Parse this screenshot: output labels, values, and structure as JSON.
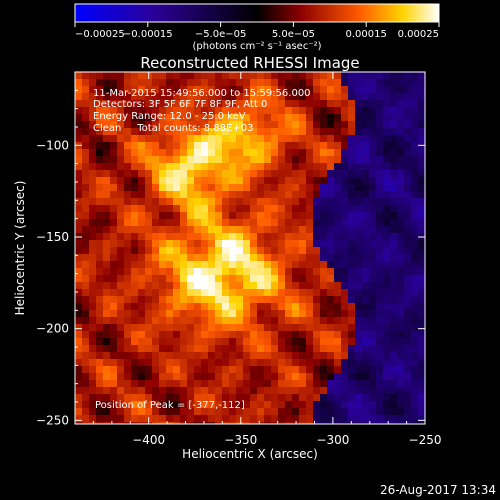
{
  "chart_data": {
    "type": "heatmap",
    "title": "Reconstructed RHESSI Image",
    "xlabel": "Heliocentric X (arcsec)",
    "ylabel": "Heliocentric Y (arcsec)",
    "xlim": [
      -440,
      -250
    ],
    "ylim": [
      -252,
      -60
    ],
    "x_ticks": [
      -400,
      -350,
      -300,
      -250
    ],
    "x_tick_labels": [
      "−400",
      "−350",
      "−300",
      "−250"
    ],
    "y_ticks": [
      -100,
      -150,
      -200,
      -250
    ],
    "y_tick_labels": [
      "−100",
      "−150",
      "−200",
      "−250"
    ],
    "colorbar": {
      "range": [
        -0.00025,
        0.00025
      ],
      "ticks": [
        -0.00025,
        -0.00015,
        -5e-05,
        5e-05,
        0.00015,
        0.00025
      ],
      "tick_labels": [
        "−0.00025",
        "−0.00015",
        "−5.0e−05",
        "5.0e−05",
        "0.00015",
        "0.00025"
      ],
      "units": "(photons cm⁻² s⁻¹ asec⁻²)",
      "colormap": [
        "#0000ff",
        "#2a0096",
        "#000000",
        "#8c0000",
        "#ff5a00",
        "#ffd400",
        "#ffffff"
      ]
    },
    "annotations": {
      "time_range": "11-Mar-2015 15:49:56.000 to 15:59:56.000",
      "detectors": "Detectors: 3F 5F 6F 7F 8F 9F, Att 0",
      "energy_range": "Energy Range: 12.0 - 25.0 keV",
      "clean": "Clean     Total counts: 8.88E+03",
      "peak": "Position of Peak = [-377,-112]"
    },
    "peak_position": [
      -377,
      -112
    ]
  },
  "timestamp": "26-Aug-2017 13:34"
}
